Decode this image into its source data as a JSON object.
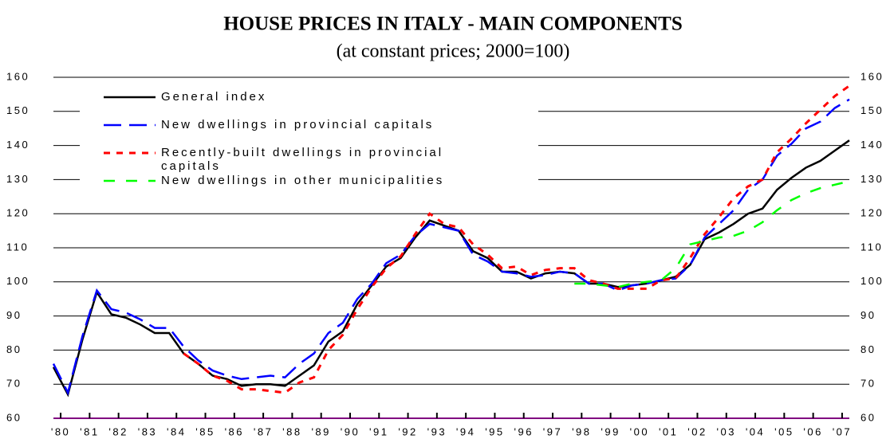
{
  "chart_data": {
    "type": "line",
    "title": "HOUSE PRICES IN ITALY - MAIN COMPONENTS",
    "subtitle": "(at constant prices; 2000=100)",
    "x": [
      1980,
      1980.5,
      1981,
      1981.5,
      1982,
      1982.5,
      1983,
      1983.5,
      1984,
      1984.5,
      1985,
      1985.5,
      1986,
      1986.5,
      1987,
      1987.5,
      1988,
      1988.5,
      1989,
      1989.5,
      1990,
      1990.5,
      1991,
      1991.5,
      1992,
      1992.5,
      1993,
      1993.5,
      1994,
      1994.5,
      1995,
      1995.5,
      1996,
      1996.5,
      1997,
      1997.5,
      1998,
      1998.5,
      1999,
      1999.5,
      2000,
      2000.5,
      2001,
      2001.5,
      2002,
      2002.5,
      2003,
      2003.5,
      2004,
      2004.5,
      2005,
      2005.5,
      2006,
      2006.5,
      2007,
      2007.5
    ],
    "series": [
      {
        "name": "General index",
        "color": "#000000",
        "values": [
          75,
          67,
          83,
          97,
          90.5,
          89.5,
          87.5,
          85,
          85,
          79,
          76,
          72.5,
          71.5,
          69.5,
          70,
          70,
          69.5,
          72.5,
          75.5,
          82.5,
          85.5,
          93.5,
          99,
          104.5,
          107,
          113,
          118,
          116.5,
          115,
          109,
          107,
          103,
          103,
          101,
          102.5,
          103,
          102.5,
          99.5,
          99.5,
          98.5,
          99,
          99.5,
          100.5,
          101.5,
          105,
          112.5,
          114.5,
          117,
          120,
          121.5,
          127,
          130.5,
          133.5,
          135.5,
          138.5,
          141.5
        ]
      },
      {
        "name": "New dwellings in provincial capitals",
        "color": "#0000ff",
        "values": [
          76,
          67.5,
          84,
          97.5,
          92,
          91,
          89,
          86.5,
          86.5,
          81,
          77,
          74,
          72.5,
          71.5,
          72,
          72.5,
          72,
          76,
          79,
          85,
          88,
          95,
          99.5,
          105.5,
          108,
          113.5,
          117,
          116,
          115,
          108,
          106,
          103,
          102.5,
          101.5,
          102,
          103,
          102.5,
          99.5,
          99.5,
          97.5,
          99,
          99.5,
          100.5,
          101,
          105,
          113,
          117,
          121,
          127,
          130,
          137,
          140.5,
          145,
          147,
          151,
          153.5
        ]
      },
      {
        "name": "Recently-built dwellings in provincial capitals",
        "color": "#ff0000",
        "values": [
          null,
          null,
          null,
          null,
          null,
          null,
          null,
          null,
          null,
          79,
          76,
          72.5,
          71,
          68.5,
          68.5,
          68,
          67.5,
          70.5,
          72,
          80,
          84.5,
          92,
          98.5,
          104,
          107.5,
          114,
          120,
          117,
          116,
          111,
          108,
          104,
          104.5,
          102,
          103.5,
          104,
          104,
          100.5,
          99.5,
          98,
          98,
          98,
          100.5,
          101,
          107,
          114,
          119,
          124.5,
          128,
          130,
          138,
          142,
          146.5,
          150.5,
          154.5,
          157.5
        ]
      },
      {
        "name": "New dwellings in other municipalities",
        "color": "#00ff00",
        "values": [
          null,
          null,
          null,
          null,
          null,
          null,
          null,
          null,
          null,
          null,
          null,
          null,
          null,
          null,
          null,
          null,
          null,
          null,
          null,
          null,
          null,
          null,
          null,
          null,
          null,
          null,
          null,
          null,
          null,
          null,
          null,
          null,
          null,
          null,
          null,
          null,
          99.5,
          99.5,
          99,
          98.5,
          99.5,
          100,
          100.5,
          104,
          111,
          112,
          113,
          113.5,
          115,
          117.5,
          121,
          124,
          126,
          127.5,
          128.5,
          129.5
        ]
      }
    ],
    "xlim": [
      1980,
      2007.5
    ],
    "xticks": [
      {
        "value": 1980.25,
        "label": "'80"
      },
      {
        "value": 1981.25,
        "label": "'81"
      },
      {
        "value": 1982.25,
        "label": "'82"
      },
      {
        "value": 1983.25,
        "label": "'83"
      },
      {
        "value": 1984.25,
        "label": "'84"
      },
      {
        "value": 1985.25,
        "label": "'85"
      },
      {
        "value": 1986.25,
        "label": "'86"
      },
      {
        "value": 1987.25,
        "label": "'87"
      },
      {
        "value": 1988.25,
        "label": "'88"
      },
      {
        "value": 1989.25,
        "label": "'89"
      },
      {
        "value": 1990.25,
        "label": "'90"
      },
      {
        "value": 1991.25,
        "label": "'91"
      },
      {
        "value": 1992.25,
        "label": "'92"
      },
      {
        "value": 1993.25,
        "label": "'93"
      },
      {
        "value": 1994.25,
        "label": "'94"
      },
      {
        "value": 1995.25,
        "label": "'95"
      },
      {
        "value": 1996.25,
        "label": "'96"
      },
      {
        "value": 1997.25,
        "label": "'97"
      },
      {
        "value": 1998.25,
        "label": "'98"
      },
      {
        "value": 1999.25,
        "label": "'99"
      },
      {
        "value": 2000.25,
        "label": "'00"
      },
      {
        "value": 2001.25,
        "label": "'01"
      },
      {
        "value": 2002.25,
        "label": "'02"
      },
      {
        "value": 2003.25,
        "label": "'03"
      },
      {
        "value": 2004.25,
        "label": "'04"
      },
      {
        "value": 2005.25,
        "label": "'05"
      },
      {
        "value": 2006.25,
        "label": "'06"
      },
      {
        "value": 2007.25,
        "label": "'07"
      }
    ],
    "ylim": [
      60,
      160
    ],
    "yticks": [
      60,
      70,
      80,
      90,
      100,
      110,
      120,
      130,
      140,
      150,
      160
    ],
    "y2lim": [
      60,
      160
    ],
    "y2ticks": [
      60,
      70,
      80,
      90,
      100,
      110,
      120,
      130,
      140,
      150,
      160
    ],
    "grid": true,
    "legend": "upper left"
  }
}
